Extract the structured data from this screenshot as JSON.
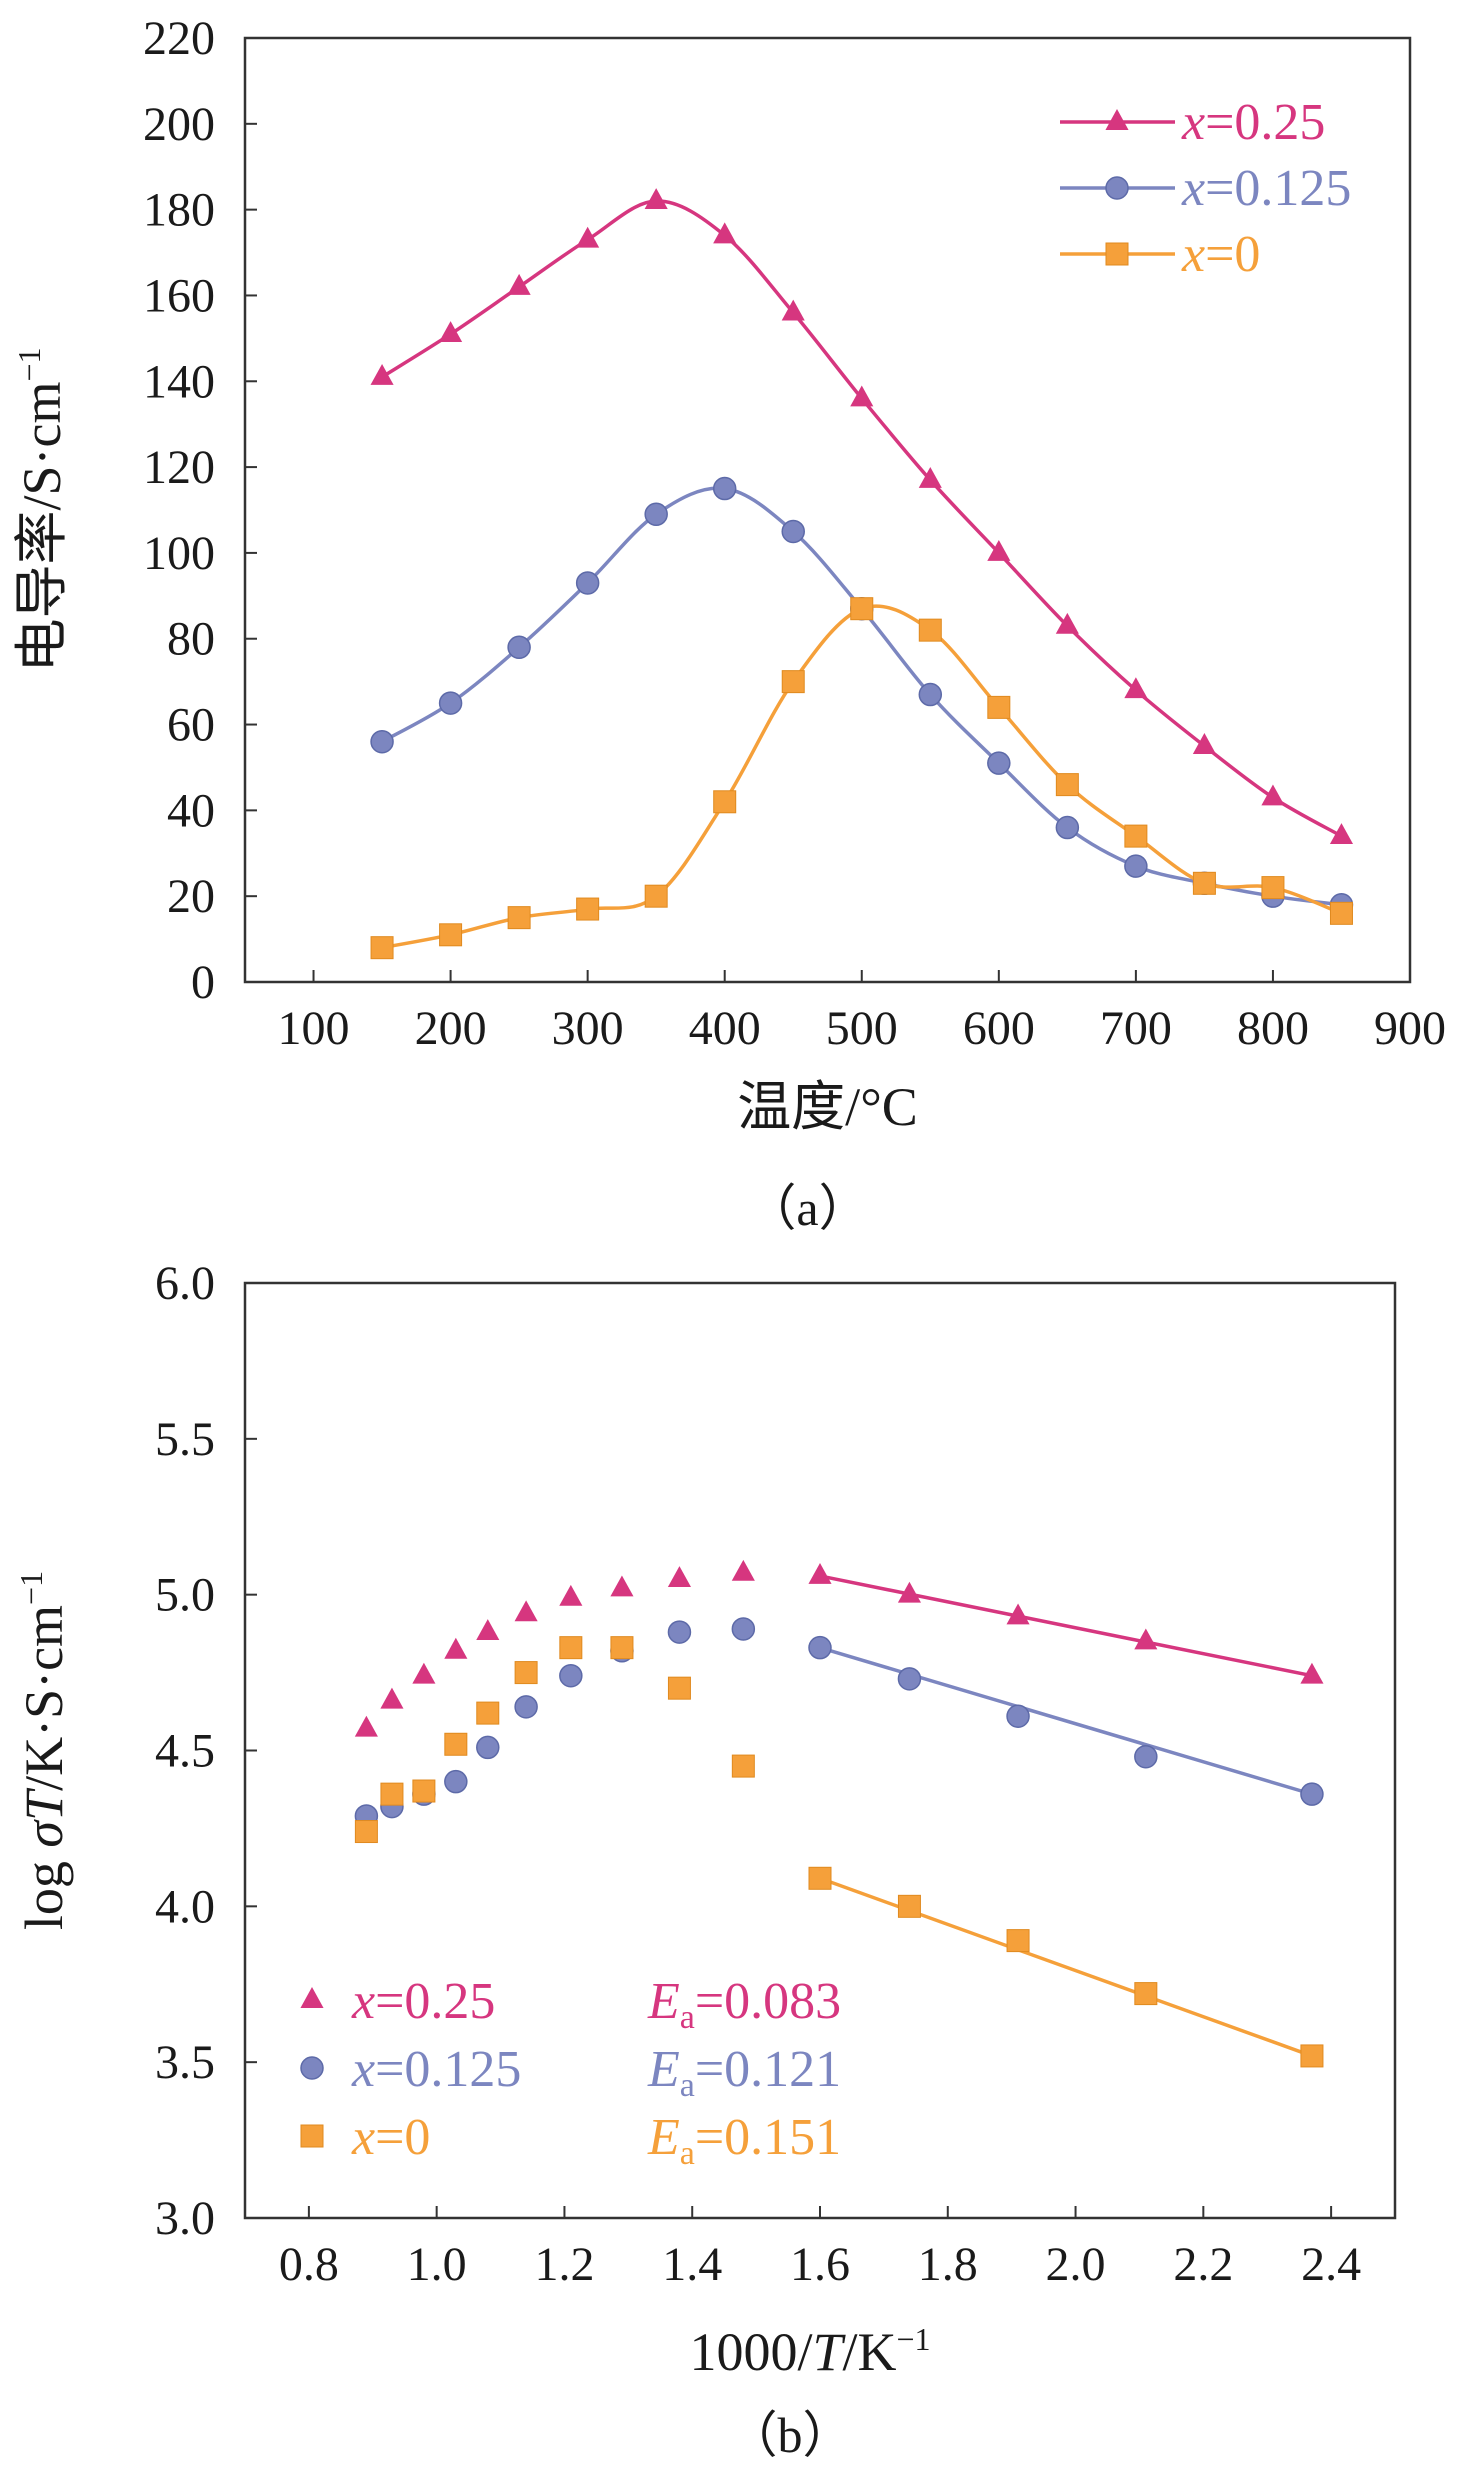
{
  "chart_data": [
    {
      "type": "line",
      "panel": "(a)",
      "caption": "（a）",
      "xlabel": "温度/°C",
      "ylabel": "电导率/S·cm⁻¹",
      "ylabel_main": "电导率/S·cm",
      "ylabel_sup": "−1",
      "xlim": [
        50,
        900
      ],
      "ylim": [
        0,
        220
      ],
      "xticks": [
        100,
        200,
        300,
        400,
        500,
        600,
        700,
        800,
        900
      ],
      "yticks": [
        0,
        20,
        40,
        60,
        80,
        100,
        120,
        140,
        160,
        180,
        200,
        220
      ],
      "grid": false,
      "legend_position": "top-right",
      "series": [
        {
          "name": "x=0.25",
          "var": "x",
          "value": "=0.25",
          "color": "#d6367f",
          "marker": "triangle",
          "x": [
            150,
            200,
            250,
            300,
            350,
            400,
            450,
            500,
            550,
            600,
            650,
            700,
            750,
            800,
            850
          ],
          "y": [
            141,
            151,
            162,
            173,
            182,
            174,
            156,
            136,
            117,
            100,
            83,
            68,
            55,
            43,
            34
          ]
        },
        {
          "name": "x=0.125",
          "var": "x",
          "value": "=0.125",
          "color": "#7c86c0",
          "marker": "circle",
          "x": [
            150,
            200,
            250,
            300,
            350,
            400,
            450,
            500,
            550,
            600,
            650,
            700,
            750,
            800,
            850
          ],
          "y": [
            56,
            65,
            78,
            93,
            109,
            115,
            105,
            87,
            67,
            51,
            36,
            27,
            23,
            20,
            18
          ]
        },
        {
          "name": "x=0",
          "var": "x",
          "value": "=0",
          "color": "#f5a03a",
          "marker": "square",
          "x": [
            150,
            200,
            250,
            300,
            350,
            400,
            450,
            500,
            550,
            600,
            650,
            700,
            750,
            800,
            850
          ],
          "y": [
            8,
            11,
            15,
            17,
            20,
            42,
            70,
            87,
            82,
            64,
            46,
            34,
            23,
            22,
            16
          ]
        }
      ]
    },
    {
      "type": "scatter",
      "panel": "(b)",
      "caption": "（b）",
      "xlabel": "1000/T/K⁻¹",
      "xlabel_parts": {
        "pre": "1000/",
        "var": "T",
        "post": "/K",
        "sup": "−1"
      },
      "ylabel": "log σT/K·S·cm⁻¹",
      "ylabel_parts": {
        "pre": "log ",
        "var": "σT",
        "post": "/K·S·cm",
        "sup": "−1"
      },
      "xlim": [
        0.7,
        2.5
      ],
      "ylim": [
        3.0,
        6.0
      ],
      "xticks": [
        0.8,
        1.0,
        1.2,
        1.4,
        1.6,
        1.8,
        2.0,
        2.2,
        2.4
      ],
      "yticks": [
        3.0,
        3.5,
        4.0,
        4.5,
        5.0,
        5.5,
        6.0
      ],
      "grid": false,
      "legend_position": "bottom-left",
      "series": [
        {
          "name": "x=0.25",
          "var": "x",
          "value": "=0.25",
          "color": "#d6367f",
          "marker": "triangle",
          "ea_var": "E",
          "ea_sub": "a",
          "ea_value": "=0.083",
          "x": [
            0.89,
            0.93,
            0.98,
            1.03,
            1.08,
            1.14,
            1.21,
            1.29,
            1.38,
            1.48,
            1.6,
            1.74,
            1.91,
            2.11,
            2.37
          ],
          "y": [
            4.57,
            4.66,
            4.74,
            4.82,
            4.88,
            4.94,
            4.99,
            5.02,
            5.05,
            5.07,
            5.06,
            5.0,
            4.93,
            4.85,
            4.74
          ],
          "fit": {
            "x": [
              1.6,
              2.37
            ],
            "y": [
              5.06,
              4.74
            ]
          }
        },
        {
          "name": "x=0.125",
          "var": "x",
          "value": "=0.125",
          "color": "#7c86c0",
          "marker": "circle",
          "ea_var": "E",
          "ea_sub": "a",
          "ea_value": "=0.121",
          "x": [
            0.89,
            0.93,
            0.98,
            1.03,
            1.08,
            1.14,
            1.21,
            1.29,
            1.38,
            1.48,
            1.6,
            1.74,
            1.91,
            2.11,
            2.37
          ],
          "y": [
            4.29,
            4.32,
            4.36,
            4.4,
            4.51,
            4.64,
            4.74,
            4.82,
            4.88,
            4.89,
            4.83,
            4.73,
            4.61,
            4.48,
            4.36
          ],
          "fit": {
            "x": [
              1.6,
              2.37
            ],
            "y": [
              4.83,
              4.36
            ]
          }
        },
        {
          "name": "x=0",
          "var": "x",
          "value": "=0",
          "color": "#f5a03a",
          "marker": "square",
          "ea_var": "E",
          "ea_sub": "a",
          "ea_value": "=0.151",
          "x": [
            0.89,
            0.93,
            0.98,
            1.03,
            1.08,
            1.14,
            1.21,
            1.29,
            1.38,
            1.48,
            1.6,
            1.74,
            1.91,
            2.11,
            2.37
          ],
          "y": [
            4.24,
            4.36,
            4.37,
            4.52,
            4.62,
            4.75,
            4.83,
            4.83,
            4.7,
            4.45,
            4.09,
            4.0,
            3.89,
            3.72,
            3.52
          ],
          "fit": {
            "x": [
              1.6,
              2.37
            ],
            "y": [
              4.09,
              3.52
            ]
          }
        }
      ]
    }
  ]
}
